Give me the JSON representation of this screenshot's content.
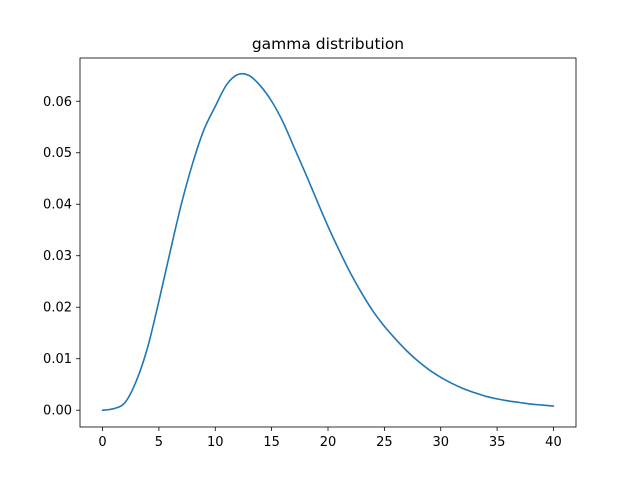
{
  "chart_data": {
    "type": "line",
    "title": "gamma distribution",
    "xlabel": "",
    "ylabel": "",
    "xlim": [
      -2,
      42
    ],
    "ylim": [
      -0.00326,
      0.0684
    ],
    "x_ticks": [
      0,
      5,
      10,
      15,
      20,
      25,
      30,
      35,
      40
    ],
    "x_tick_labels": [
      "0",
      "5",
      "10",
      "15",
      "20",
      "25",
      "30",
      "35",
      "40"
    ],
    "y_ticks": [
      0.0,
      0.01,
      0.02,
      0.03,
      0.04,
      0.05,
      0.06
    ],
    "y_tick_labels": [
      "0.00",
      "0.01",
      "0.02",
      "0.03",
      "0.04",
      "0.05",
      "0.06"
    ],
    "grid": false,
    "legend": "none",
    "line_color": "#1f77b4",
    "series": [
      {
        "x": [
          0,
          1,
          2,
          3,
          4,
          5,
          6,
          7,
          8,
          9,
          10,
          11,
          12,
          13,
          14,
          15,
          16,
          17,
          18,
          19,
          20,
          21,
          22,
          23,
          24,
          25,
          26,
          27,
          28,
          29,
          30,
          31,
          32,
          33,
          34,
          35,
          36,
          37,
          38,
          39,
          40
        ],
        "values": [
          0.0,
          0.0003,
          0.0015,
          0.0057,
          0.0122,
          0.0212,
          0.0308,
          0.0401,
          0.048,
          0.0545,
          0.059,
          0.0632,
          0.0652,
          0.065,
          0.063,
          0.06,
          0.056,
          0.051,
          0.046,
          0.0408,
          0.0357,
          0.031,
          0.0266,
          0.0227,
          0.0192,
          0.0163,
          0.0138,
          0.0115,
          0.0095,
          0.0078,
          0.0064,
          0.0052,
          0.0042,
          0.0034,
          0.0027,
          0.0022,
          0.0018,
          0.0015,
          0.0012,
          0.001,
          0.0008
        ]
      }
    ]
  }
}
